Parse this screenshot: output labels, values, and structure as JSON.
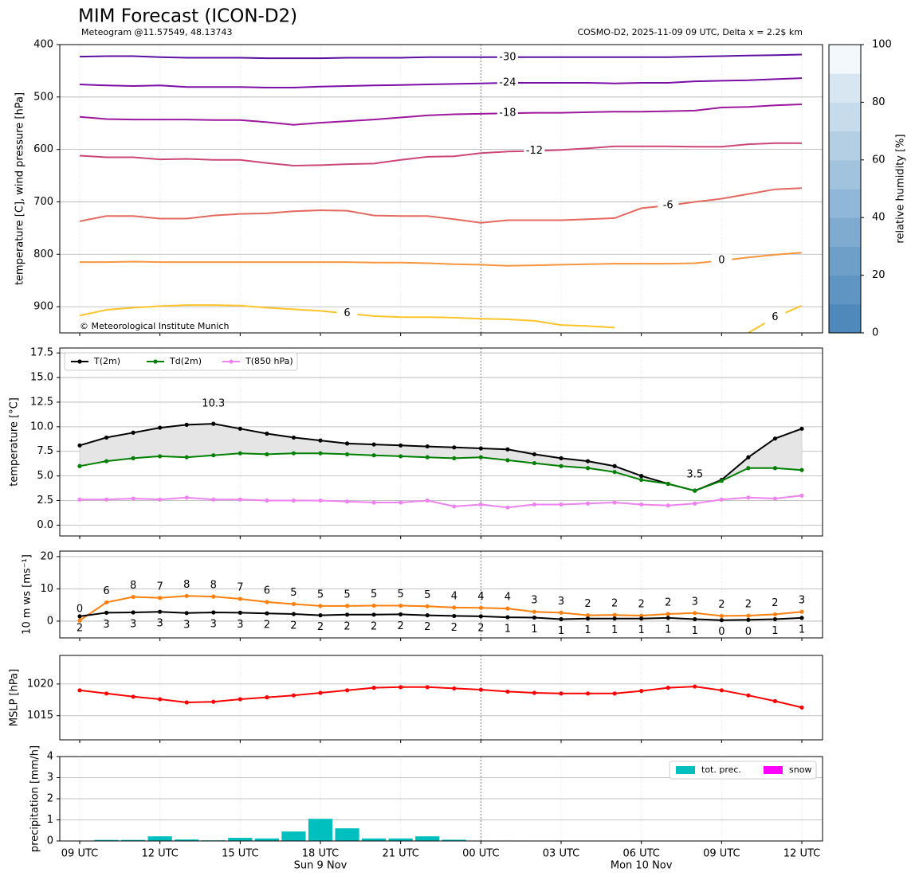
{
  "chart_data": [
    {
      "type": "contour",
      "title": "MIM Forecast (ICON-D2)",
      "subtitle": "Meteogram @11.57549, 48.13743",
      "source": "COSMO-D2, 2025-11-09 09 UTC, Delta x = 2.2$ km",
      "annotation": "© Meteorological Institute Munich",
      "ylabel": "temperature [C], wind pressure [hPa]",
      "ylim": [
        950,
        400
      ],
      "yticks": [
        400,
        500,
        600,
        700,
        800,
        900
      ],
      "grid": true,
      "series": [
        {
          "name": "-30",
          "color": "#5c0fa0",
          "values": [
            423,
            422,
            422,
            424,
            425,
            425,
            425,
            426,
            426,
            426,
            425,
            425,
            425,
            424,
            424,
            424,
            424,
            424,
            424,
            424,
            424,
            424,
            424,
            423,
            422,
            421,
            420,
            419
          ]
        },
        {
          "name": "-24",
          "color": "#7b0ea6",
          "values": [
            476,
            478,
            479,
            478,
            481,
            481,
            481,
            482,
            482,
            480,
            479,
            478,
            477,
            476,
            475,
            474,
            473,
            473,
            473,
            473,
            474,
            473,
            473,
            470,
            469,
            468,
            466,
            464
          ]
        },
        {
          "name": "-18",
          "color": "#9c179e",
          "values": [
            538,
            542,
            543,
            543,
            543,
            544,
            544,
            548,
            553,
            549,
            546,
            543,
            539,
            535,
            533,
            532,
            531,
            530,
            530,
            529,
            528,
            528,
            527,
            526,
            520,
            519,
            516,
            514
          ]
        },
        {
          "name": "-12",
          "color": "#cc4778",
          "values": [
            612,
            615,
            615,
            619,
            618,
            620,
            620,
            626,
            631,
            630,
            628,
            627,
            620,
            614,
            613,
            607,
            604,
            603,
            601,
            598,
            594,
            594,
            594,
            595,
            595,
            590,
            588,
            588
          ]
        },
        {
          "name": "-6",
          "color": "#e4695e",
          "values": [
            737,
            727,
            727,
            732,
            732,
            726,
            723,
            722,
            718,
            716,
            717,
            726,
            727,
            727,
            733,
            740,
            735,
            735,
            735,
            733,
            731,
            712,
            707,
            700,
            694,
            685,
            676,
            674
          ]
        },
        {
          "name": "0",
          "color": "#f89540",
          "values": [
            815,
            815,
            814,
            815,
            815,
            815,
            815,
            815,
            815,
            815,
            815,
            816,
            816,
            817,
            819,
            820,
            822,
            821,
            820,
            819,
            818,
            818,
            818,
            817,
            812,
            806,
            801,
            797
          ]
        },
        {
          "name": "6",
          "color": "#fdc328",
          "values": [
            917,
            906,
            902,
            899,
            897,
            897,
            898,
            902,
            905,
            908,
            913,
            918,
            920,
            920,
            921,
            923,
            924,
            927,
            935,
            937,
            940,
            null,
            null,
            null,
            null,
            950,
            920,
            898
          ]
        }
      ],
      "colorbar": {
        "label": "relative humidity [%]",
        "lim": [
          0,
          100
        ],
        "ticks": [
          0,
          20,
          40,
          60,
          80,
          100
        ],
        "colors": [
          "#4f88ba",
          "#6094c3",
          "#6e9fc9",
          "#7fabd0",
          "#90b7d7",
          "#a2c3dd",
          "#b4cfe4",
          "#c6dbeb",
          "#d8e6f2",
          "#f3f8fc"
        ]
      }
    },
    {
      "type": "line",
      "ylabel": "temperature [°C]",
      "ylim": [
        -1.1,
        18
      ],
      "yticks": [
        {
          "value": 0,
          "label": "0.0"
        },
        2.5,
        {
          "value": 5,
          "label": "5.0"
        },
        7.5,
        {
          "value": 10,
          "label": "10.0"
        },
        12.5,
        {
          "value": 15,
          "label": "15.0"
        },
        17.5
      ],
      "grid": true,
      "legend": "upper left",
      "fill_between": true,
      "fill_color": "#e5e5e5",
      "series": [
        {
          "name": "T(2m)",
          "color": "#000000",
          "values": [
            8.1,
            8.9,
            9.4,
            9.9,
            10.2,
            10.3,
            9.8,
            9.3,
            8.9,
            8.6,
            8.3,
            8.2,
            8.1,
            8.0,
            7.9,
            7.8,
            7.7,
            7.2,
            6.8,
            6.5,
            6.0,
            5.0,
            4.2,
            3.5,
            4.6,
            6.9,
            8.8,
            9.8
          ],
          "max_label": "10.3",
          "max_label_color": "#ff0000",
          "min_label": "3.5",
          "min_label_color": "#0000ff"
        },
        {
          "name": "Td(2m)",
          "color": "#008000",
          "values": [
            6.0,
            6.5,
            6.8,
            7.0,
            6.9,
            7.1,
            7.3,
            7.2,
            7.3,
            7.3,
            7.2,
            7.1,
            7.0,
            6.9,
            6.8,
            6.9,
            6.6,
            6.3,
            6.0,
            5.8,
            5.4,
            4.6,
            4.2,
            3.5,
            4.5,
            5.8,
            5.8,
            5.6
          ]
        },
        {
          "name": "T(850 hPa)",
          "color": "#ee82ee",
          "values": [
            2.6,
            2.6,
            2.7,
            2.6,
            2.8,
            2.6,
            2.6,
            2.5,
            2.5,
            2.5,
            2.4,
            2.3,
            2.3,
            2.5,
            1.9,
            2.1,
            1.8,
            2.1,
            2.1,
            2.2,
            2.3,
            2.1,
            2.0,
            2.2,
            2.6,
            2.8,
            2.7,
            3.0
          ]
        }
      ]
    },
    {
      "type": "line",
      "ylabel": "10 m ws [ms⁻¹]",
      "ylim": [
        -5.2,
        21.7
      ],
      "yticks": [
        0,
        10,
        20
      ],
      "grid": true,
      "series": [
        {
          "color": "#ff7f0e",
          "values": [
            0.2,
            5.8,
            7.5,
            7.2,
            7.8,
            7.6,
            6.9,
            5.9,
            5.3,
            4.7,
            4.7,
            4.8,
            4.8,
            4.6,
            4.2,
            4.1,
            3.9,
            2.9,
            2.6,
            1.8,
            1.9,
            1.7,
            2.2,
            2.5,
            1.6,
            1.7,
            2.1,
            2.9
          ],
          "value_labels": [
            "0",
            "6",
            "8",
            "7",
            "8",
            "8",
            "7",
            "6",
            "5",
            "5",
            "5",
            "5",
            "5",
            "5",
            "4",
            "4",
            "4",
            "3",
            "3",
            "2",
            "2",
            "2",
            "2",
            "3",
            "2",
            "2",
            "2",
            "3"
          ]
        },
        {
          "color": "#000000",
          "values": [
            1.5,
            2.6,
            2.7,
            2.9,
            2.5,
            2.7,
            2.6,
            2.4,
            2.2,
            1.8,
            2.0,
            2.0,
            2.1,
            1.8,
            1.6,
            1.5,
            1.2,
            1.1,
            0.6,
            0.8,
            0.8,
            0.8,
            1.0,
            0.6,
            0.3,
            0.4,
            0.6,
            1.0
          ],
          "value_labels": [
            "2",
            "3",
            "3",
            "3",
            "3",
            "3",
            "3",
            "2",
            "2",
            "2",
            "2",
            "2",
            "2",
            "2",
            "2",
            "2",
            "1",
            "1",
            "1",
            "1",
            "1",
            "1",
            "1",
            "1",
            "0",
            "0",
            "1",
            "1"
          ]
        }
      ]
    },
    {
      "type": "line",
      "ylabel": "MSLP [hPa]",
      "ylim": [
        1011.2,
        1024.5
      ],
      "yticks": [
        1015,
        1020
      ],
      "grid": true,
      "series": [
        {
          "color": "#ff0000",
          "values": [
            1019.0,
            1018.5,
            1018.0,
            1017.6,
            1017.1,
            1017.2,
            1017.6,
            1017.9,
            1018.2,
            1018.6,
            1019.0,
            1019.4,
            1019.5,
            1019.5,
            1019.3,
            1019.1,
            1018.8,
            1018.6,
            1018.5,
            1018.5,
            1018.5,
            1018.9,
            1019.4,
            1019.6,
            1019.0,
            1018.2,
            1017.3,
            1016.3
          ]
        }
      ]
    },
    {
      "type": "bar",
      "ylabel": "precipitation [mm/h]",
      "ylim": [
        0,
        4
      ],
      "yticks": [
        0,
        1,
        2,
        3,
        4
      ],
      "grid": true,
      "legend": "upper right",
      "categories": [
        "09 UTC",
        null,
        null,
        "12 UTC",
        null,
        null,
        "15 UTC",
        null,
        null,
        "18 UTC",
        null,
        null,
        "21 UTC",
        null,
        null,
        "00 UTC",
        null,
        null,
        "03 UTC",
        null,
        null,
        "06 UTC",
        null,
        null,
        "09 UTC",
        null,
        null,
        "12 UTC"
      ],
      "dates": [
        null,
        null,
        null,
        null,
        null,
        null,
        null,
        null,
        null,
        "Sun 9 Nov",
        null,
        null,
        null,
        null,
        null,
        null,
        null,
        null,
        null,
        null,
        null,
        "Mon 10 Nov",
        null,
        null,
        null,
        null,
        null,
        null
      ],
      "series": [
        {
          "name": "tot. prec.",
          "color": "#00bfbf",
          "values": [
            0,
            0.05,
            0.05,
            0.22,
            0.07,
            0.03,
            0.15,
            0.12,
            0.45,
            1.05,
            0.6,
            0.12,
            0.12,
            0.22,
            0.06,
            0.02,
            0.02,
            0,
            0,
            0,
            0,
            0,
            0,
            0,
            0,
            0,
            0,
            0
          ]
        },
        {
          "name": "snow",
          "color": "#ff00ff",
          "values": [
            0,
            0,
            0,
            0,
            0,
            0,
            0,
            0,
            0,
            0,
            0,
            0,
            0,
            0,
            0,
            0,
            0,
            0,
            0,
            0,
            0,
            0,
            0,
            0,
            0,
            0,
            0,
            0
          ]
        }
      ]
    }
  ]
}
